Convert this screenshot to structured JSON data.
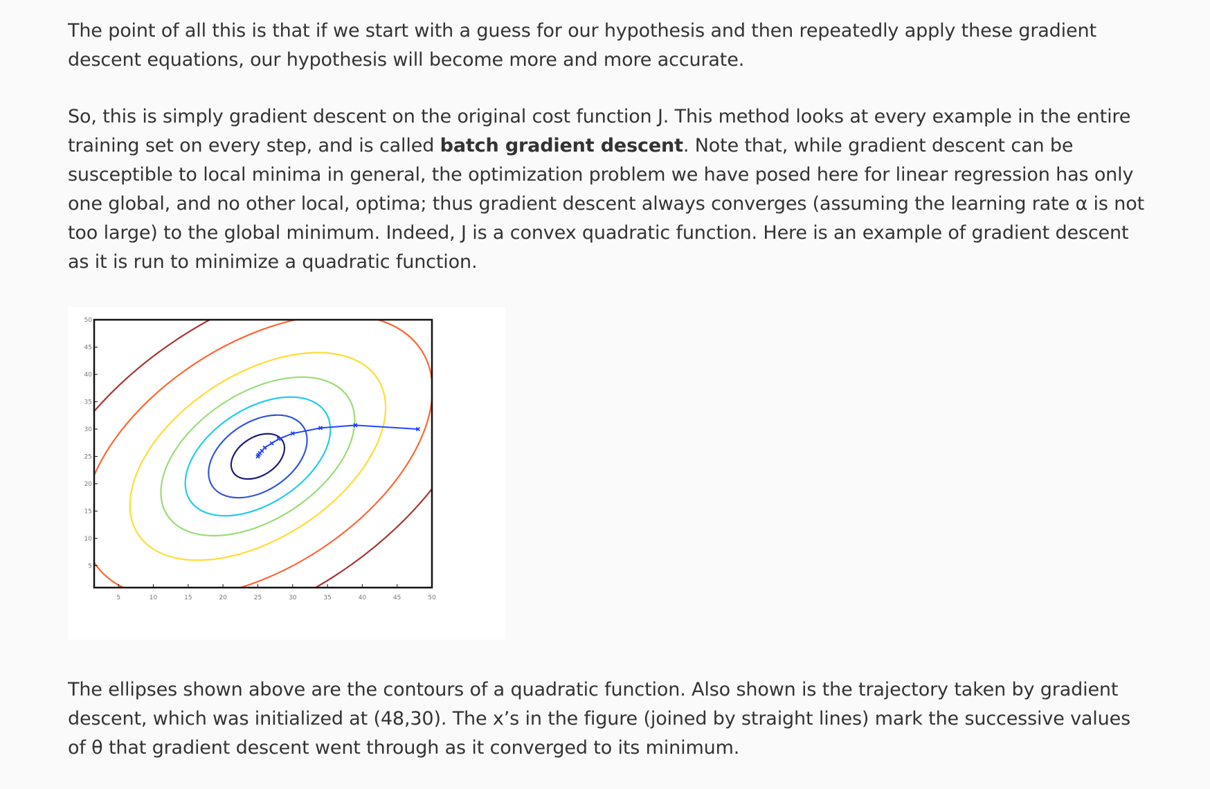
{
  "paragraphs": {
    "p1": "The point of all this is that if we start with a guess for our hypothesis and then repeatedly apply these gradient descent equations, our hypothesis will become more and more accurate.",
    "p2_before_bold": "So, this is simply gradient descent on the original cost function J. This method looks at every example in the entire training set on every step, and is called ",
    "p2_bold": "batch gradient descent",
    "p2_after_bold": ". Note that, while gradient descent can be susceptible to local minima in general, the optimization problem we have posed here for linear regression has only one global, and no other local, optima; thus gradient descent always converges (assuming the learning rate α is not too large) to the global minimum. Indeed, J is a convex quadratic function. Here is an example of gradient descent as it is run to minimize a quadratic function.",
    "p3": "The ellipses shown above are the contours of a quadratic function. Also shown is the trajectory taken by gradient descent, which was initialized at (48,30). The x’s in the figure (joined by straight lines) mark the successive values of θ that gradient descent went through as it converged to its minimum."
  },
  "chart_data": {
    "type": "contour",
    "title": "",
    "xlabel": "",
    "ylabel": "",
    "xlim": [
      1.5,
      50
    ],
    "ylim": [
      1,
      50
    ],
    "xticks": [
      5,
      10,
      15,
      20,
      25,
      30,
      35,
      40,
      45,
      50
    ],
    "yticks": [
      5,
      10,
      15,
      20,
      25,
      30,
      35,
      40,
      45,
      50
    ],
    "contour_center": [
      25,
      25
    ],
    "contours": [
      {
        "level": 1,
        "color": "#1a1a7a",
        "rx": 4.2,
        "ry": 3.5,
        "angle_deg": -33
      },
      {
        "level": 2,
        "color": "#3355dd",
        "rx": 7.8,
        "ry": 6.3,
        "angle_deg": -33
      },
      {
        "level": 3,
        "color": "#22ccee",
        "rx": 11.6,
        "ry": 8.7,
        "angle_deg": -33
      },
      {
        "level": 4,
        "color": "#99dd77",
        "rx": 15.5,
        "ry": 11.6,
        "angle_deg": -33
      },
      {
        "level": 5,
        "color": "#ffdd33",
        "rx": 20.5,
        "ry": 15.0,
        "angle_deg": -33
      },
      {
        "level": 6,
        "color": "#ff6633",
        "rx": 28.0,
        "ry": 20.5,
        "angle_deg": -33
      },
      {
        "level": 7,
        "color": "#aa3333",
        "rx": 36.0,
        "ry": 26.0,
        "angle_deg": -33
      }
    ],
    "trajectory": {
      "color": "#2244ff",
      "x": [
        48,
        39,
        34,
        30,
        28,
        27,
        26,
        25.6,
        25.3,
        25.1,
        25
      ],
      "y": [
        30,
        30.7,
        30.2,
        29.2,
        28.2,
        27.4,
        26.6,
        26.0,
        25.6,
        25.3,
        25
      ]
    }
  }
}
